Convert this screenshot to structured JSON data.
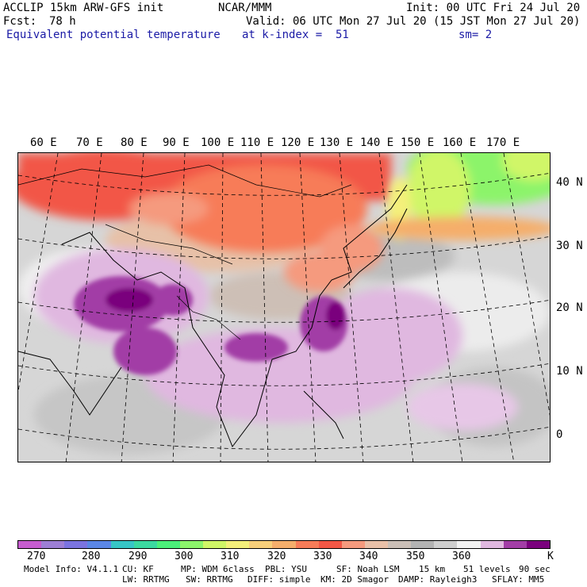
{
  "header": {
    "model": "ACCLIP 15km ARW-GFS init",
    "org": "NCAR/MMM",
    "init": "Init: 00 UTC Fri 24 Jul 20",
    "fcst_label": "Fcst:",
    "fcst_value": "78 h",
    "valid": "Valid: 06 UTC Mon 27 Jul 20 (15 JST Mon 27 Jul 20)",
    "variable": "Equivalent potential temperature",
    "level": "at k-index =  51",
    "smooth": "sm= 2"
  },
  "map": {
    "lon_labels": [
      "60 E",
      "70 E",
      "80 E",
      "90 E",
      "100 E",
      "110 E",
      "120 E",
      "130 E",
      "140 E",
      "150 E",
      "160 E",
      "170 E"
    ],
    "lat_labels": [
      "40 N",
      "30 N",
      "20 N",
      "10 N",
      "0"
    ]
  },
  "colorbar": {
    "unit": "K",
    "ticks": [
      "270",
      "280",
      "290",
      "300",
      "310",
      "320",
      "330",
      "340",
      "350",
      "360"
    ],
    "colors": [
      "#c65ccf",
      "#9d7fd6",
      "#7b74e1",
      "#5b87e6",
      "#37c6c6",
      "#3bd9a0",
      "#4bf07a",
      "#8cf46b",
      "#d0f667",
      "#f4f07a",
      "#f7cf7a",
      "#f5ae6b",
      "#f77c58",
      "#f25746",
      "#f59a7e",
      "#e9c0a8",
      "#cbbfb7",
      "#b3b3b3",
      "#cfcfcf",
      "#f2f2f2",
      "#e0b8e0",
      "#a23ea6",
      "#7a007d"
    ]
  },
  "footer": {
    "line1": [
      "Model Info: V4.1.1",
      "CU: KF",
      "MP: WDM 6class",
      "PBL: YSU",
      "SF: Noah LSM",
      "15 km",
      "51 levels",
      "90 sec"
    ],
    "line2": [
      "LW: RRTMG",
      "SW: RRTMG",
      "DIFF: simple",
      "KM: 2D Smagor",
      "DAMP: Rayleigh3",
      "SFLAY: MM5"
    ]
  }
}
